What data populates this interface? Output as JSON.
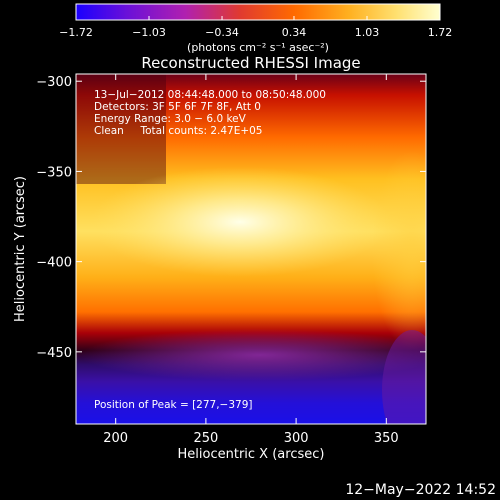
{
  "chart_data": {
    "type": "heatmap",
    "title": "Reconstructed RHESSI Image",
    "xlabel": "Heliocentric X (arcsec)",
    "ylabel": "Heliocentric Y (arcsec)",
    "xlim": [
      178,
      372
    ],
    "ylim": [
      -490,
      -296
    ],
    "x_ticks": [
      200,
      250,
      300,
      350
    ],
    "x_tick_labels": [
      "200",
      "250",
      "300",
      "350"
    ],
    "y_ticks": [
      -300,
      -350,
      -400,
      -450
    ],
    "y_tick_labels": [
      "−300",
      "−350",
      "−400",
      "−450"
    ],
    "colorbar": {
      "min": -1.72,
      "max": 1.72,
      "tick_values": [
        -1.72,
        -1.03,
        -0.34,
        0.34,
        1.03,
        1.72
      ],
      "tick_labels": [
        "−1.72",
        "−1.03",
        "−0.34",
        "0.34",
        "1.03",
        "1.72"
      ],
      "units_label": "(photons cm⁻² s⁻¹ asec⁻²)",
      "colors": [
        "#1a00ff",
        "#6a10d8",
        "#b020b0",
        "#e03a30",
        "#ff6a00",
        "#ffb020",
        "#ffe070",
        "#ffffd0"
      ]
    },
    "annotations": [
      "13−Jul−2012 08:44:48.000 to 08:50:48.000",
      "Detectors: 3F 5F 6F 7F 8F, Att 0",
      "Energy Range: 3.0 − 6.0 keV",
      "Clean     Total counts: 2.47E+05"
    ],
    "peak_label": "Position of Peak = [277,−379]",
    "peak": [
      277,
      -379
    ],
    "bands": [
      {
        "y_top": -296,
        "y_bottom": -330,
        "value": 0.55
      },
      {
        "y_top": -330,
        "y_bottom": -348,
        "value": 1.2
      },
      {
        "y_top": -348,
        "y_bottom": -410,
        "value": 1.55
      },
      {
        "y_top": -410,
        "y_bottom": -425,
        "value": 0.35
      },
      {
        "y_top": -425,
        "y_bottom": -440,
        "value": -0.5
      },
      {
        "y_top": -440,
        "y_bottom": -490,
        "value": -1.3
      }
    ]
  },
  "footer": {
    "date": "12−May−2022 14:52"
  }
}
